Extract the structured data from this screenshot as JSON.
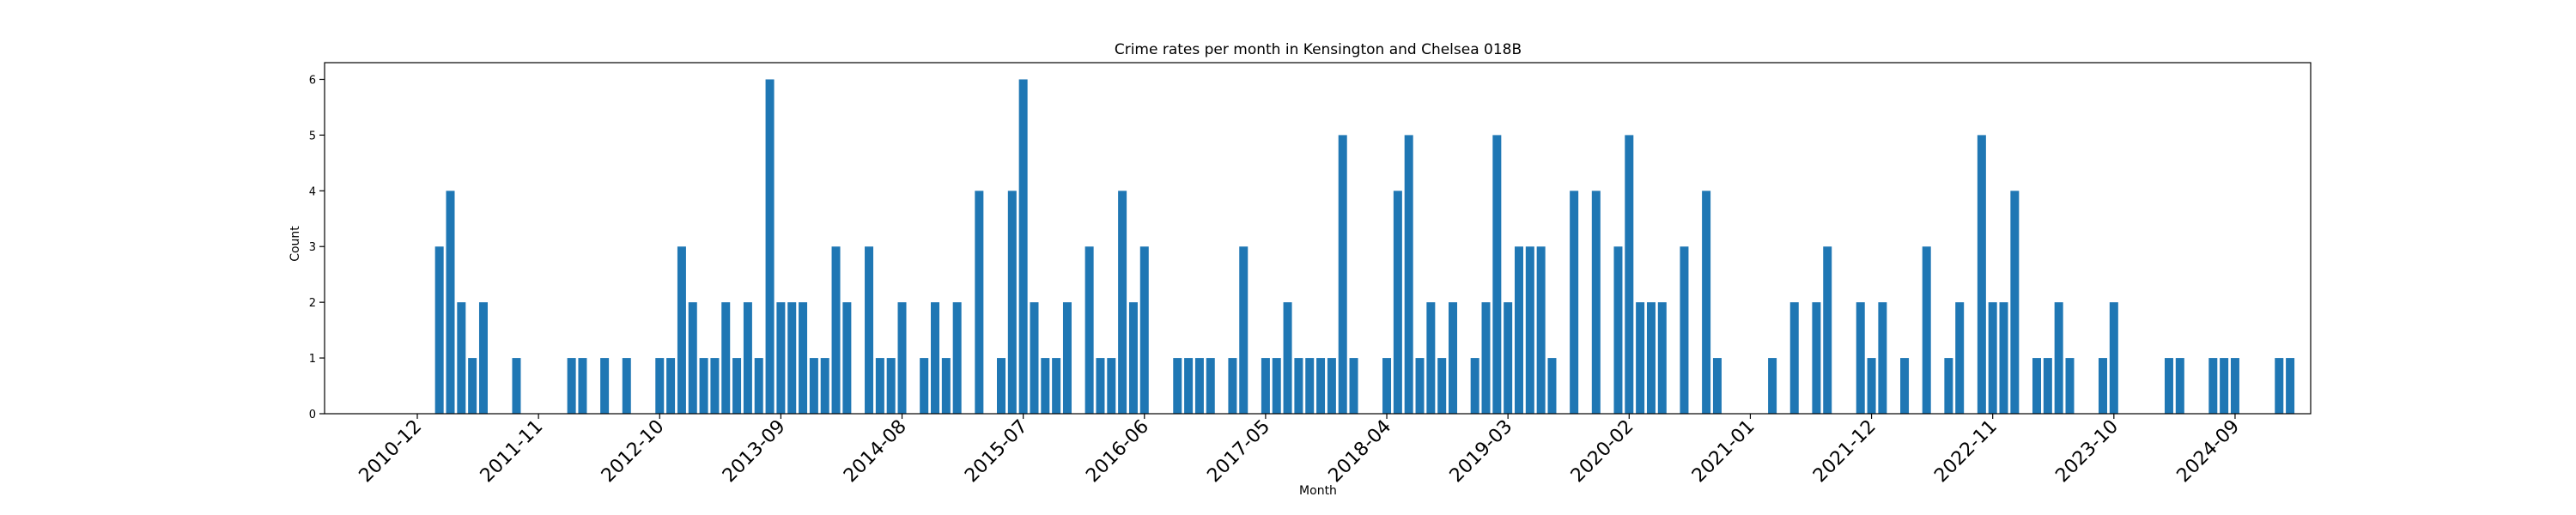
{
  "chart_data": {
    "type": "bar",
    "title": "Crime rates per month in Kensington and Chelsea 018B",
    "xlabel": "Month",
    "ylabel": "Count",
    "ylim": [
      0,
      6.3
    ],
    "yticks": [
      0,
      1,
      2,
      3,
      4,
      5,
      6
    ],
    "grid": false,
    "legend": "none",
    "color": "#1f77b4",
    "xticks": [
      "2010-12",
      "2011-11",
      "2012-10",
      "2013-09",
      "2014-08",
      "2015-07",
      "2016-06",
      "2017-05",
      "2018-04",
      "2019-03",
      "2020-02",
      "2021-01",
      "2021-12",
      "2022-11",
      "2023-10",
      "2024-09"
    ],
    "series": [
      {
        "x": [
          "2011-02",
          "2011-03",
          "2011-04",
          "2011-05",
          "2011-06",
          "2011-09",
          "2012-02",
          "2012-03",
          "2012-05",
          "2012-07",
          "2012-10",
          "2012-11",
          "2012-12",
          "2013-01",
          "2013-02",
          "2013-03",
          "2013-04",
          "2013-05",
          "2013-06",
          "2013-07",
          "2013-08",
          "2013-09",
          "2013-10",
          "2013-11",
          "2013-12",
          "2014-01",
          "2014-02",
          "2014-03",
          "2014-05",
          "2014-06",
          "2014-07",
          "2014-08",
          "2014-10",
          "2014-11",
          "2014-12",
          "2015-01",
          "2015-03",
          "2015-05",
          "2015-06",
          "2015-07",
          "2015-08",
          "2015-09",
          "2015-10",
          "2015-11",
          "2016-01",
          "2016-02",
          "2016-03",
          "2016-04",
          "2016-05",
          "2016-06",
          "2016-09",
          "2016-10",
          "2016-11",
          "2016-12",
          "2017-02",
          "2017-03",
          "2017-05",
          "2017-06",
          "2017-07",
          "2017-08",
          "2017-09",
          "2017-10",
          "2017-11",
          "2017-12",
          "2018-01",
          "2018-04",
          "2018-05",
          "2018-06",
          "2018-07",
          "2018-08",
          "2018-09",
          "2018-10",
          "2018-12",
          "2019-01",
          "2019-02",
          "2019-03",
          "2019-04",
          "2019-05",
          "2019-06",
          "2019-07",
          "2019-09",
          "2019-11",
          "2020-01",
          "2020-02",
          "2020-03",
          "2020-04",
          "2020-05",
          "2020-07",
          "2020-09",
          "2020-10",
          "2021-03",
          "2021-05",
          "2021-07",
          "2021-08",
          "2021-11",
          "2021-12",
          "2022-01",
          "2022-03",
          "2022-05",
          "2022-07",
          "2022-08",
          "2022-10",
          "2022-11",
          "2022-12",
          "2023-01",
          "2023-03",
          "2023-04",
          "2023-05",
          "2023-06",
          "2023-09",
          "2023-10",
          "2024-03",
          "2024-04",
          "2024-07",
          "2024-08",
          "2024-09",
          "2025-01",
          "2025-02"
        ],
        "values": [
          3,
          4,
          2,
          1,
          2,
          1,
          1,
          1,
          1,
          1,
          1,
          1,
          3,
          2,
          1,
          1,
          2,
          1,
          2,
          1,
          6,
          2,
          2,
          2,
          1,
          1,
          3,
          2,
          3,
          1,
          1,
          2,
          1,
          2,
          1,
          2,
          4,
          1,
          4,
          6,
          2,
          1,
          1,
          2,
          3,
          1,
          1,
          4,
          2,
          3,
          1,
          1,
          1,
          1,
          1,
          3,
          1,
          1,
          2,
          1,
          1,
          1,
          1,
          5,
          1,
          1,
          4,
          5,
          1,
          2,
          1,
          2,
          1,
          2,
          5,
          2,
          3,
          3,
          3,
          1,
          4,
          4,
          3,
          5,
          2,
          2,
          2,
          3,
          4,
          1,
          1,
          2,
          2,
          3,
          2,
          1,
          2,
          1,
          3,
          1,
          2,
          5,
          2,
          2,
          4,
          1,
          1,
          2,
          1,
          1,
          2,
          1,
          1,
          1,
          1,
          1,
          1,
          1
        ]
      }
    ]
  }
}
